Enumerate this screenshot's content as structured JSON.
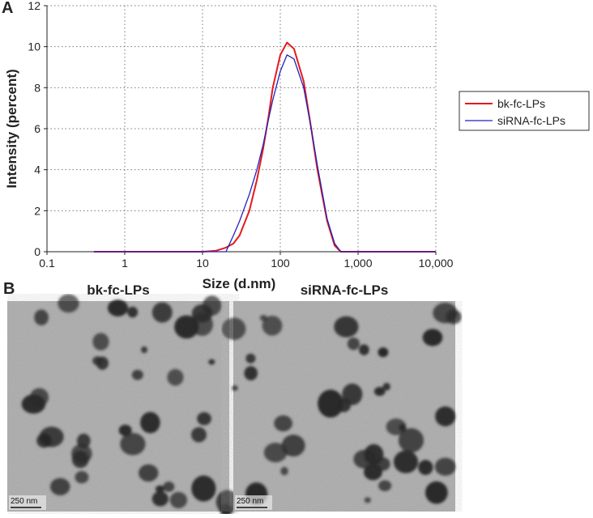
{
  "chart_data": {
    "type": "line",
    "panel_label": "A",
    "x_label": "Size (d.nm)",
    "y_label": "Intensity (percent)",
    "x": [
      0.4,
      1,
      5,
      10,
      15,
      20,
      25,
      30,
      40,
      50,
      60,
      70,
      80,
      100,
      122,
      150,
      200,
      250,
      300,
      400,
      500,
      600,
      1000,
      5000,
      10000
    ],
    "series": [
      {
        "name": "bk-fc-LPs",
        "color": "#e31a1c",
        "values": [
          0,
          0,
          0,
          0,
          0.05,
          0.2,
          0.4,
          0.8,
          2,
          3.5,
          5,
          6.5,
          8,
          9.6,
          10.2,
          9.9,
          8.3,
          6,
          4,
          1.5,
          0.3,
          0,
          0,
          0,
          0
        ]
      },
      {
        "name": "siRNA-fc-LPs",
        "color": "#2222bb",
        "values": [
          0,
          0,
          0,
          0,
          0,
          0,
          0.8,
          1.5,
          2.8,
          4,
          5.2,
          6.4,
          7.4,
          8.8,
          9.6,
          9.4,
          8,
          6,
          4.2,
          1.6,
          0.4,
          0,
          0,
          0,
          0
        ]
      }
    ],
    "xlim": [
      0.1,
      10000
    ],
    "xticks": [
      0.1,
      1,
      10,
      100,
      {
        "value": 1000,
        "label": "1,000"
      },
      {
        "value": 10000,
        "label": "10,000"
      }
    ],
    "x_log": true,
    "ylim": [
      0,
      12
    ],
    "yticks": [
      0,
      2,
      4,
      6,
      8,
      10,
      12
    ],
    "grid": true,
    "legend": "right"
  },
  "panel_b": {
    "panel_label": "B",
    "images": [
      {
        "title": "bk-fc-LPs",
        "scale_bar": "250 nm"
      },
      {
        "title": "siRNA-fc-LPs",
        "scale_bar": "250 nm"
      }
    ]
  }
}
